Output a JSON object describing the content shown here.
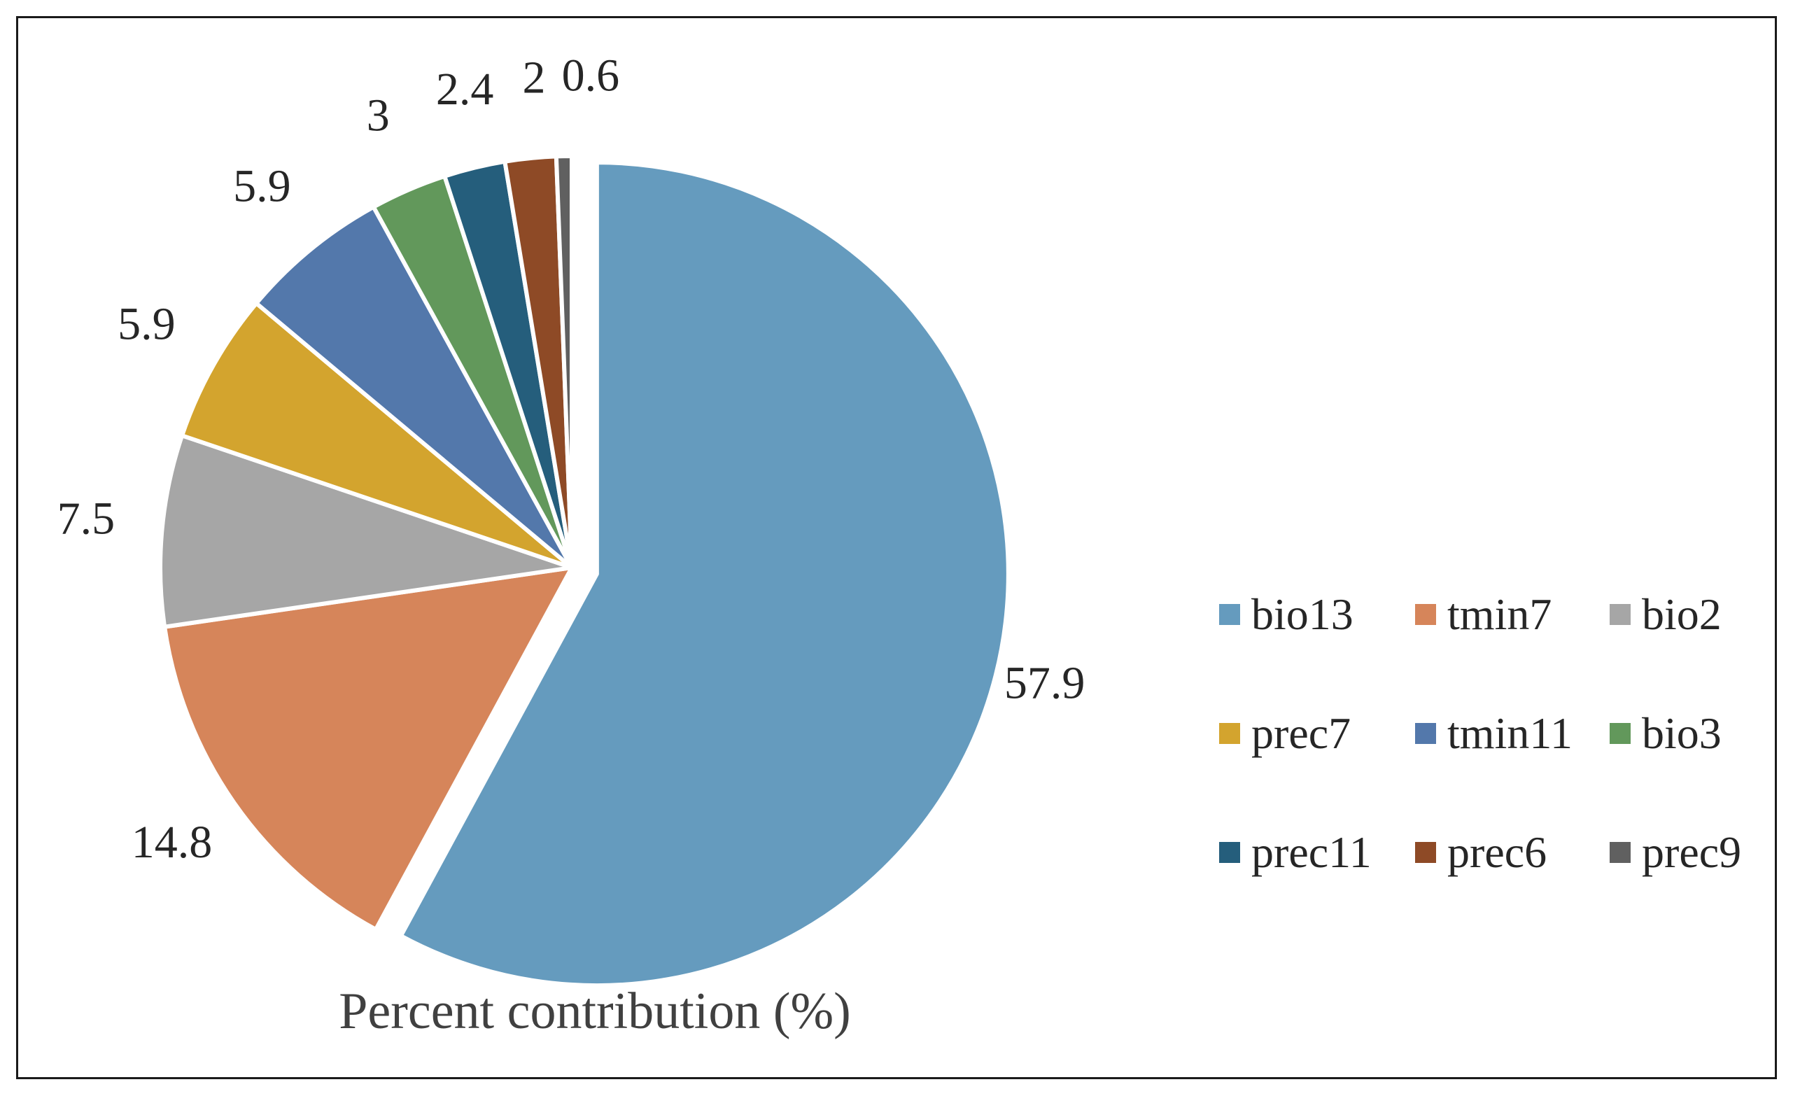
{
  "chart_data": {
    "type": "pie",
    "title": "Percent contribution (%)",
    "categories": [
      "bio13",
      "tmin7",
      "bio2",
      "prec7",
      "tmin11",
      "bio3",
      "prec11",
      "prec6",
      "prec9"
    ],
    "values": [
      57.9,
      14.8,
      7.5,
      5.9,
      5.9,
      3,
      2.4,
      2,
      0.6
    ],
    "data_labels": [
      "57.9",
      "14.8",
      "7.5",
      "5.9",
      "5.9",
      "3",
      "2.4",
      "2",
      "0.6"
    ],
    "colors": [
      "#659BBE",
      "#D6855A",
      "#A6A6A6",
      "#D3A42E",
      "#5378AB",
      "#62985B",
      "#255E7C",
      "#8E4A26",
      "#606060"
    ],
    "exploded_slice": "bio13",
    "start_angle_deg": 0,
    "direction": "clockwise",
    "legend_position": "right",
    "legend_columns": 3
  }
}
